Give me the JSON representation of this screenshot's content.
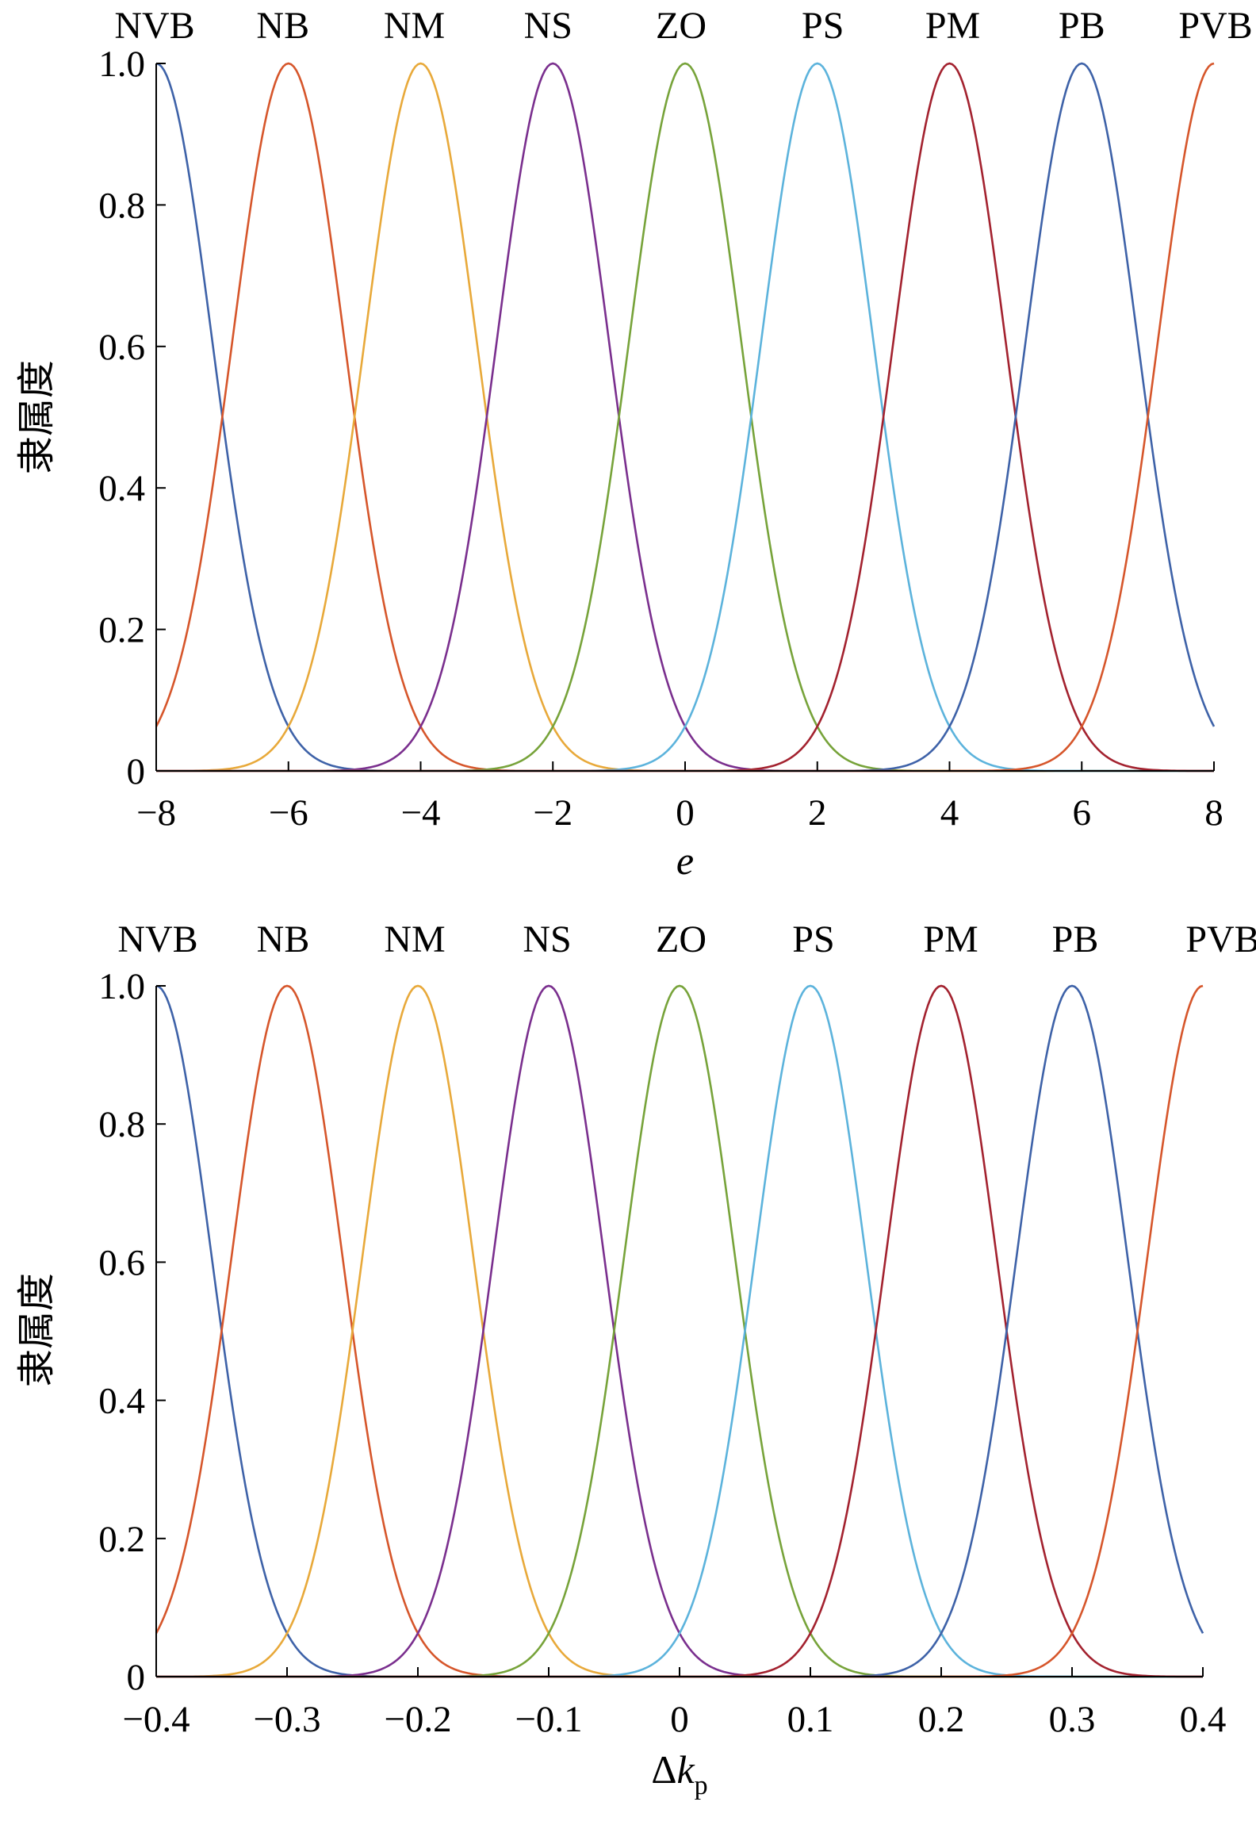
{
  "chart_data": [
    {
      "type": "line",
      "ylabel": "隶属度",
      "xlabel": "e",
      "xlim": [
        -8,
        8
      ],
      "ylim": [
        0,
        1.0
      ],
      "x_ticks": [
        "−8",
        "−6",
        "−4",
        "−2",
        "0",
        "2",
        "4",
        "6",
        "8"
      ],
      "y_ticks": [
        "0",
        "0.2",
        "0.4",
        "0.6",
        "0.8",
        "1.0"
      ],
      "curve_shape": "gaussian",
      "sigma": 0.85,
      "grid": false,
      "series": [
        {
          "name": "NVB",
          "center": -8,
          "color": "#3e62a8"
        },
        {
          "name": "NB",
          "center": -6,
          "color": "#d6562b"
        },
        {
          "name": "NM",
          "center": -4,
          "color": "#e8a93a"
        },
        {
          "name": "NS",
          "center": -2,
          "color": "#7a2f8e"
        },
        {
          "name": "ZO",
          "center": 0,
          "color": "#77a33a"
        },
        {
          "name": "PS",
          "center": 2,
          "color": "#5cb3dc"
        },
        {
          "name": "PM",
          "center": 4,
          "color": "#a3222f"
        },
        {
          "name": "PB",
          "center": 6,
          "color": "#3e62a8"
        },
        {
          "name": "PVB",
          "center": 8,
          "color": "#d6562b"
        }
      ]
    },
    {
      "type": "line",
      "ylabel": "隶属度",
      "xlabel_prefix": "Δ",
      "xlabel_main": "k",
      "xlabel_sub": "p",
      "xlim": [
        -0.4,
        0.4
      ],
      "ylim": [
        0,
        1.0
      ],
      "x_ticks": [
        "−0.4",
        "−0.3",
        "−0.2",
        "−0.1",
        "0",
        "0.1",
        "0.2",
        "0.3",
        "0.4"
      ],
      "y_ticks": [
        "0",
        "0.2",
        "0.4",
        "0.6",
        "0.8",
        "1.0"
      ],
      "curve_shape": "gaussian",
      "sigma": 0.0425,
      "grid": false,
      "series": [
        {
          "name": "NVB",
          "center": -0.4,
          "color": "#3e62a8"
        },
        {
          "name": "NB",
          "center": -0.3,
          "color": "#d6562b"
        },
        {
          "name": "NM",
          "center": -0.2,
          "color": "#e8a93a"
        },
        {
          "name": "NS",
          "center": -0.1,
          "color": "#7a2f8e"
        },
        {
          "name": "ZO",
          "center": 0,
          "color": "#77a33a"
        },
        {
          "name": "PS",
          "center": 0.1,
          "color": "#5cb3dc"
        },
        {
          "name": "PM",
          "center": 0.2,
          "color": "#a3222f"
        },
        {
          "name": "PB",
          "center": 0.3,
          "color": "#3e62a8"
        },
        {
          "name": "PVB",
          "center": 0.4,
          "color": "#d6562b"
        }
      ]
    }
  ]
}
